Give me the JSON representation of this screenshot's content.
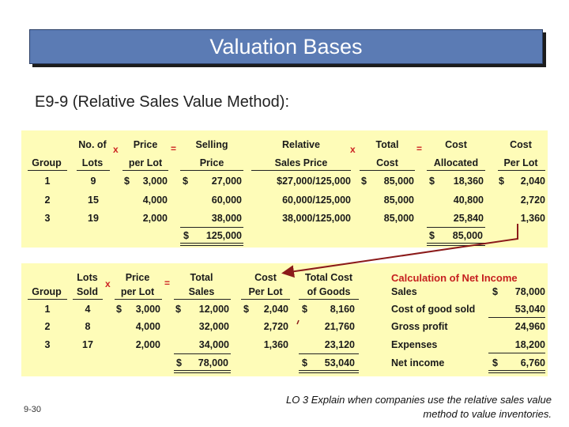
{
  "slide_title": "Valuation Bases",
  "subtitle": "E9-9 (Relative Sales Value Method):",
  "ops": {
    "x": "x",
    "eq": "="
  },
  "top_table": {
    "headers_row1": [
      "",
      "No. of",
      "Price",
      "Selling",
      "Relative",
      "Total",
      "Cost",
      "Cost"
    ],
    "headers_row2": [
      "Group",
      "Lots",
      "per Lot",
      "Price",
      "Sales Price",
      "Cost",
      "Allocated",
      "Per Lot"
    ],
    "rows": [
      [
        "1",
        "9",
        "$",
        "3,000",
        "$",
        "27,000",
        "$27,000/125,000",
        "$",
        "85,000",
        "$",
        "18,360",
        "$",
        "2,040"
      ],
      [
        "2",
        "15",
        "",
        "4,000",
        "",
        "60,000",
        "60,000/125,000",
        "",
        "85,000",
        "",
        "40,800",
        "",
        "2,720"
      ],
      [
        "3",
        "19",
        "",
        "2,000",
        "",
        "38,000",
        "38,000/125,000",
        "",
        "85,000",
        "",
        "25,840",
        "",
        "1,360"
      ]
    ],
    "totals": {
      "selling_dollar": "$",
      "selling": "125,000",
      "alloc_dollar": "$",
      "alloc": "85,000"
    }
  },
  "bottom_table": {
    "headers_row1": [
      "",
      "Lots",
      "Price",
      "Total",
      "Cost",
      "Total Cost"
    ],
    "headers_row2": [
      "Group",
      "Sold",
      "per Lot",
      "Sales",
      "Per Lot",
      "of Goods"
    ],
    "rows": [
      [
        "1",
        "4",
        "$",
        "3,000",
        "$",
        "12,000",
        "$",
        "2,040",
        "$",
        "8,160"
      ],
      [
        "2",
        "8",
        "",
        "4,000",
        "",
        "32,000",
        "",
        "2,720",
        "",
        "21,760"
      ],
      [
        "3",
        "17",
        "",
        "2,000",
        "",
        "34,000",
        "",
        "1,360",
        "",
        "23,120"
      ]
    ],
    "totals": {
      "sales_dollar": "$",
      "sales": "78,000",
      "cogs_dollar": "$",
      "cogs": "53,040"
    }
  },
  "income": {
    "title": "Calculation of Net Income",
    "rows": [
      {
        "label": "Sales",
        "dollar": "$",
        "value": "78,000"
      },
      {
        "label": "Cost of good sold",
        "dollar": "",
        "value": "53,040"
      },
      {
        "label": "Gross profit",
        "dollar": "",
        "value": "24,960"
      },
      {
        "label": "Expenses",
        "dollar": "",
        "value": "18,200"
      },
      {
        "label": "Net income",
        "dollar": "$",
        "value": "6,760"
      }
    ]
  },
  "page_number": "9-30",
  "learning_objective": "LO 3  Explain when companies use the relative sales value method to value inventories.",
  "colors": {
    "title_bg": "#5b7bb4",
    "panel_bg": "#fefcb8",
    "accent_red": "#c62020",
    "arrow": "#8b1a1a"
  }
}
